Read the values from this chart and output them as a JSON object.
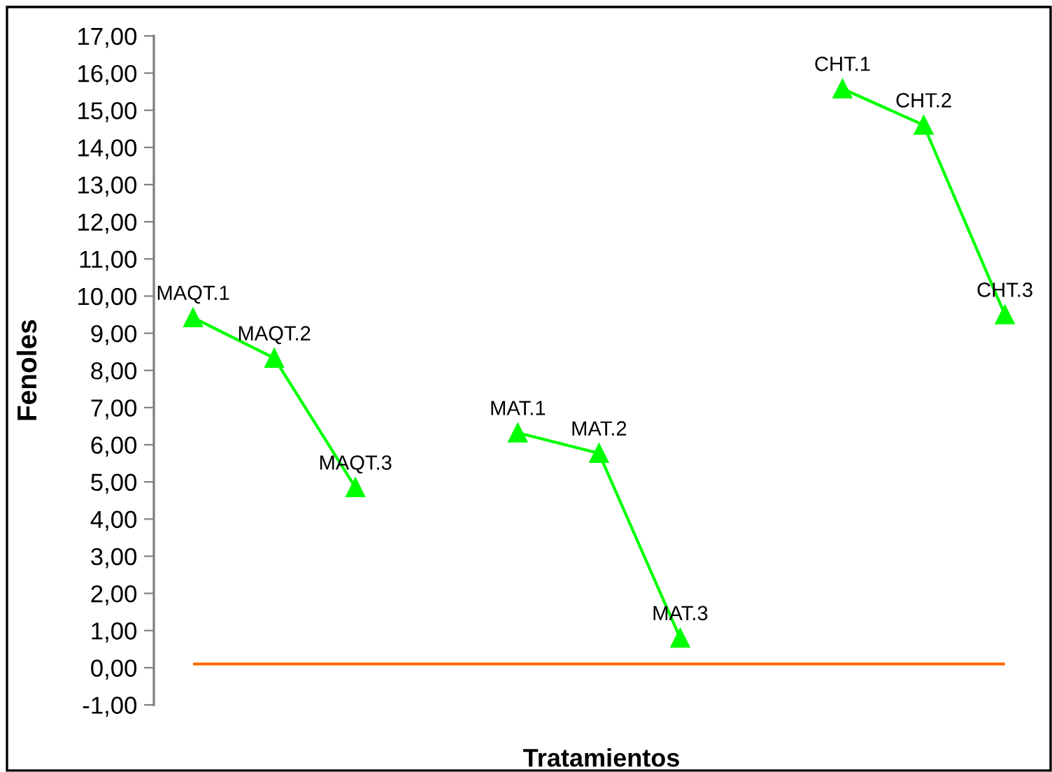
{
  "chart_data": {
    "type": "line",
    "xlabel": "Tratamientos",
    "ylabel": "Fenoles",
    "categories": [
      "MAQT.1",
      "MAQT.2",
      "MAQT.3",
      null,
      "MAT.1",
      "MAT.2",
      "MAT.3",
      null,
      "CHT.1",
      "CHT.2",
      "CHT.3"
    ],
    "series": [
      {
        "color": "#00ff00",
        "values": [
          9.42,
          8.33,
          4.85,
          null,
          6.32,
          5.77,
          0.8,
          null,
          15.58,
          14.6,
          9.5
        ]
      }
    ],
    "marker": "triangle",
    "tick_labels": "y",
    "grid": false,
    "legend": false,
    "ylim": [
      -1,
      17
    ],
    "yticks": [
      {
        "value": -1,
        "label": "-1,00"
      },
      {
        "value": 0,
        "label": "0,00"
      },
      {
        "value": 1,
        "label": "1,00"
      },
      {
        "value": 2,
        "label": "2,00"
      },
      {
        "value": 3,
        "label": "3,00"
      },
      {
        "value": 4,
        "label": "4,00"
      },
      {
        "value": 5,
        "label": "5,00"
      },
      {
        "value": 6,
        "label": "6,00"
      },
      {
        "value": 7,
        "label": "7,00"
      },
      {
        "value": 8,
        "label": "8,00"
      },
      {
        "value": 9,
        "label": "9,00"
      },
      {
        "value": 10,
        "label": "10,00"
      },
      {
        "value": 11,
        "label": "11,00"
      },
      {
        "value": 12,
        "label": "12,00"
      },
      {
        "value": 13,
        "label": "13,00"
      },
      {
        "value": 14,
        "label": "14,00"
      },
      {
        "value": 15,
        "label": "15,00"
      },
      {
        "value": 16,
        "label": "16,00"
      },
      {
        "value": 17,
        "label": "17,00"
      }
    ],
    "ref_lines": [
      {
        "axis": "y",
        "value": 0.1,
        "color": "#ff6600"
      }
    ]
  }
}
